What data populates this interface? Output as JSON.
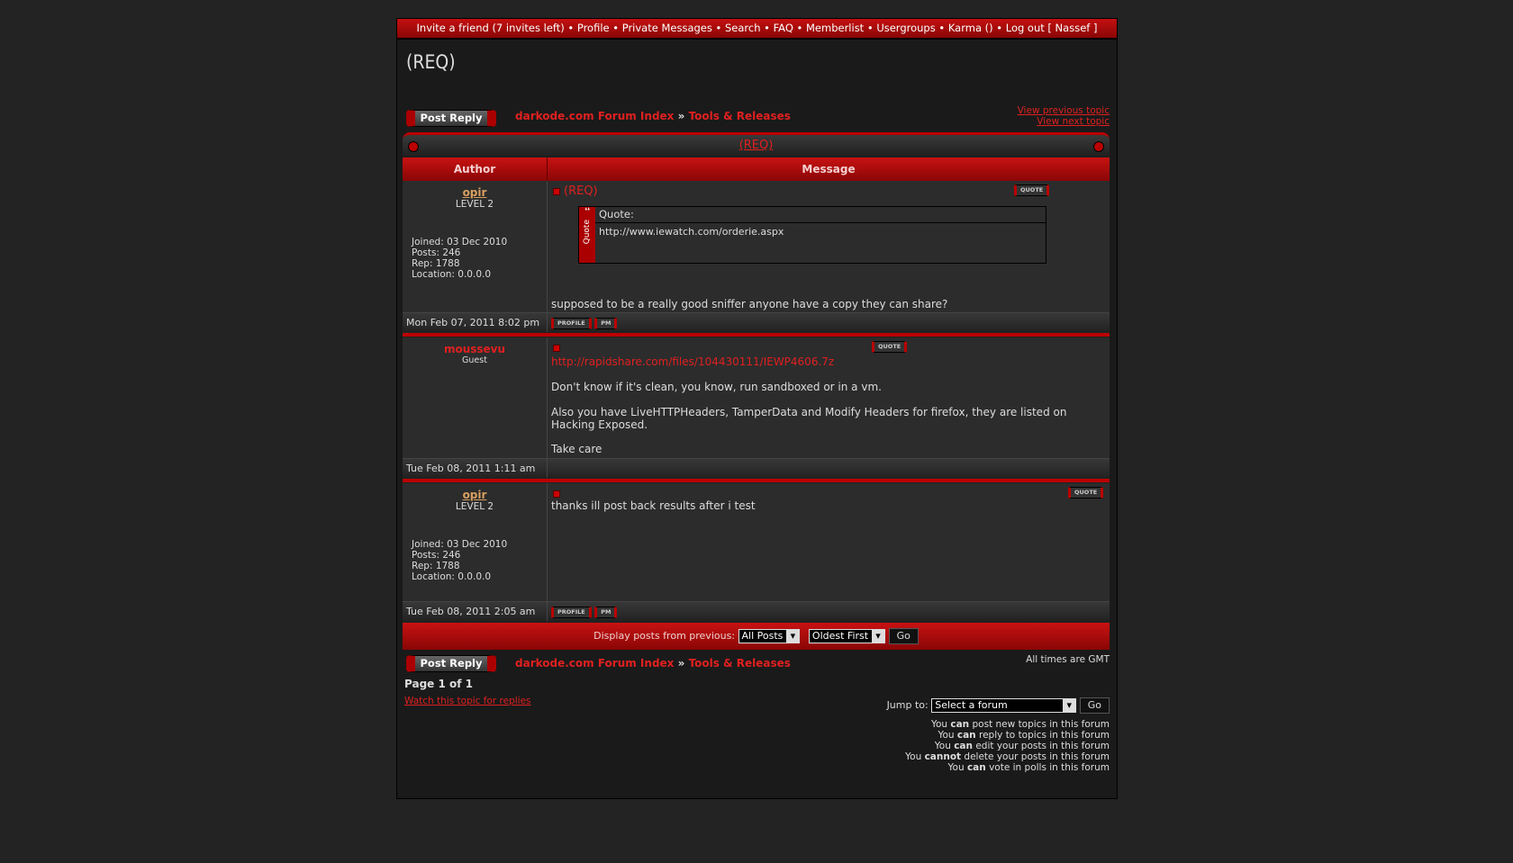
{
  "nav": [
    "Invite a friend (7 invites left)",
    "Profile",
    "Private Messages",
    "Search",
    "FAQ",
    "Memberlist",
    "Usergroups",
    "Karma ()",
    "Log out [ Nassef ]"
  ],
  "title": "(REQ)",
  "post_reply": "Post Reply",
  "breadcrumb": {
    "index": "darkode.com Forum Index",
    "sep": "»",
    "forum": "Tools & Releases"
  },
  "view_previous": "View previous topic",
  "view_next": "View next topic",
  "topic_link": "(REQ)",
  "headers": {
    "author": "Author",
    "message": "Message"
  },
  "quote_btn": "QUOTE",
  "profile_btn": "PROFILE",
  "pm_btn": "PM",
  "posts": [
    {
      "author": "opir",
      "rank": "LEVEL 2",
      "joined": "Joined: 03 Dec 2010",
      "posts": "Posts: 246",
      "rep": "Rep: 1788",
      "location": "Location: 0.0.0.0",
      "subject": "(REQ)",
      "quote_label": "Quote:",
      "quote_side": "Quote",
      "quote_text": "http://www.iewatch.com/orderie.aspx",
      "body": "supposed to be a really good sniffer anyone have a copy they can share?",
      "date": "Mon Feb 07, 2011 8:02 pm"
    },
    {
      "author": "moussevu",
      "rank": "Guest",
      "link": "http://rapidshare.com/files/104430111/IEWP4606.7z",
      "body1": "Don't know if it's clean, you know, run sandboxed or in a vm.",
      "body2": "Also you have LiveHTTPHeaders, TamperData and Modify Headers for firefox, they are listed on Hacking Exposed.",
      "body3": "Take care",
      "date": "Tue Feb 08, 2011 1:11 am"
    },
    {
      "author": "opir",
      "rank": "LEVEL 2",
      "joined": "Joined: 03 Dec 2010",
      "posts": "Posts: 246",
      "rep": "Rep: 1788",
      "location": "Location: 0.0.0.0",
      "body": "thanks ill post back results after i test",
      "date": "Tue Feb 08, 2011 2:05 am"
    }
  ],
  "display": {
    "label": "Display posts from previous:",
    "range": "All Posts",
    "order": "Oldest First",
    "go": "Go"
  },
  "timezone": "All times are GMT",
  "page": "Page 1 of 1",
  "watch": "Watch this topic for replies",
  "jump": {
    "label": "Jump to:",
    "value": "Select a forum",
    "go": "Go"
  },
  "permissions": [
    [
      "You ",
      "can",
      " post new topics in this forum"
    ],
    [
      "You ",
      "can",
      " reply to topics in this forum"
    ],
    [
      "You ",
      "can",
      " edit your posts in this forum"
    ],
    [
      "You ",
      "cannot",
      " delete your posts in this forum"
    ],
    [
      "You ",
      "can",
      " vote in polls in this forum"
    ]
  ],
  "colors": {
    "accent": "#c81212",
    "link": "#e02020",
    "username": "#d8a060"
  }
}
